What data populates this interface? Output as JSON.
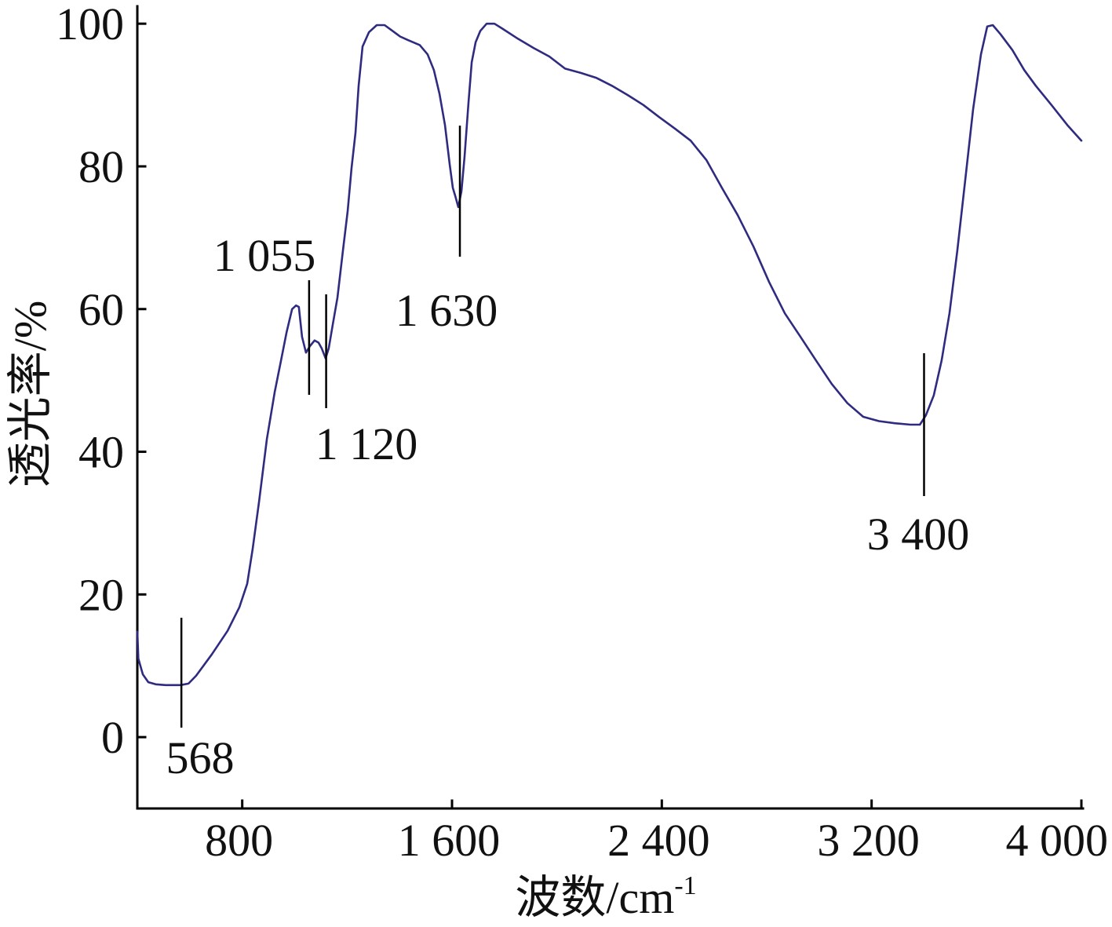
{
  "chart_data": {
    "type": "line",
    "xlabel": "波数/cm",
    "xlabel_superscript": "-1",
    "ylabel": "透光率/%",
    "xlim": [
      400,
      4000
    ],
    "ylim": [
      -10,
      102
    ],
    "xticks": [
      800,
      1600,
      2400,
      3200,
      4000
    ],
    "xtick_labels": [
      "800",
      "1 600",
      "2 400",
      "3 200",
      "4 000"
    ],
    "yticks": [
      0,
      20,
      40,
      60,
      80,
      100
    ],
    "ytick_labels": [
      "0",
      "20",
      "40",
      "60",
      "80",
      "100"
    ],
    "grid": false,
    "series": [
      {
        "color": "#2e2b80",
        "x": [
          400,
          404,
          421,
          442,
          470,
          508,
          565,
          595,
          624,
          684,
          744,
          789,
          819,
          840,
          864,
          894,
          924,
          948,
          969,
          990,
          1005,
          1016,
          1028,
          1043,
          1058,
          1076,
          1091,
          1103,
          1118,
          1130,
          1145,
          1163,
          1184,
          1202,
          1217,
          1232,
          1244,
          1259,
          1283,
          1313,
          1343,
          1373,
          1402,
          1432,
          1477,
          1507,
          1531,
          1552,
          1573,
          1591,
          1603,
          1612,
          1624,
          1636,
          1648,
          1663,
          1675,
          1690,
          1708,
          1732,
          1762,
          1792,
          1851,
          1911,
          1971,
          2031,
          2091,
          2151,
          2210,
          2270,
          2330,
          2390,
          2450,
          2510,
          2570,
          2629,
          2689,
          2749,
          2809,
          2869,
          2929,
          2988,
          3048,
          3108,
          3168,
          3228,
          3288,
          3348,
          3384,
          3407,
          3437,
          3467,
          3497,
          3527,
          3557,
          3587,
          3617,
          3641,
          3662,
          3692,
          3737,
          3782,
          3826,
          3886,
          3946,
          4000
        ],
        "y": [
          14.8,
          11.0,
          8.8,
          7.7,
          7.4,
          7.3,
          7.3,
          7.5,
          8.6,
          11.6,
          14.9,
          18.2,
          21.5,
          26.4,
          33.0,
          41.8,
          48.4,
          52.8,
          56.7,
          60.0,
          60.5,
          60.3,
          56.1,
          53.9,
          54.8,
          55.6,
          55.3,
          54.5,
          53.1,
          54.5,
          57.8,
          61.6,
          68.2,
          73.7,
          79.8,
          84.7,
          91.3,
          96.8,
          98.8,
          99.8,
          99.8,
          99.0,
          98.2,
          97.7,
          97.0,
          95.7,
          93.5,
          90.2,
          85.8,
          80.3,
          77.0,
          75.9,
          74.3,
          76.5,
          81.4,
          89.1,
          94.6,
          97.4,
          99.0,
          100.0,
          100.0,
          99.3,
          97.9,
          96.6,
          95.4,
          93.7,
          93.1,
          92.4,
          91.3,
          90.0,
          88.6,
          86.9,
          85.3,
          83.6,
          80.9,
          77.0,
          73.2,
          68.8,
          63.8,
          59.4,
          56.1,
          52.8,
          49.5,
          46.8,
          44.9,
          44.3,
          44.0,
          43.8,
          43.8,
          45.1,
          47.9,
          52.8,
          59.4,
          68.2,
          78.1,
          88.0,
          95.7,
          99.6,
          99.8,
          98.5,
          96.3,
          93.5,
          91.3,
          88.6,
          85.8,
          83.6
        ]
      }
    ],
    "annotations": [
      {
        "label": "568",
        "x": 568
      },
      {
        "label": "1 055",
        "x": 1055
      },
      {
        "label": "1 120",
        "x": 1120
      },
      {
        "label": "1 630",
        "x": 1630
      },
      {
        "label": "3 400",
        "x": 3400
      }
    ]
  }
}
